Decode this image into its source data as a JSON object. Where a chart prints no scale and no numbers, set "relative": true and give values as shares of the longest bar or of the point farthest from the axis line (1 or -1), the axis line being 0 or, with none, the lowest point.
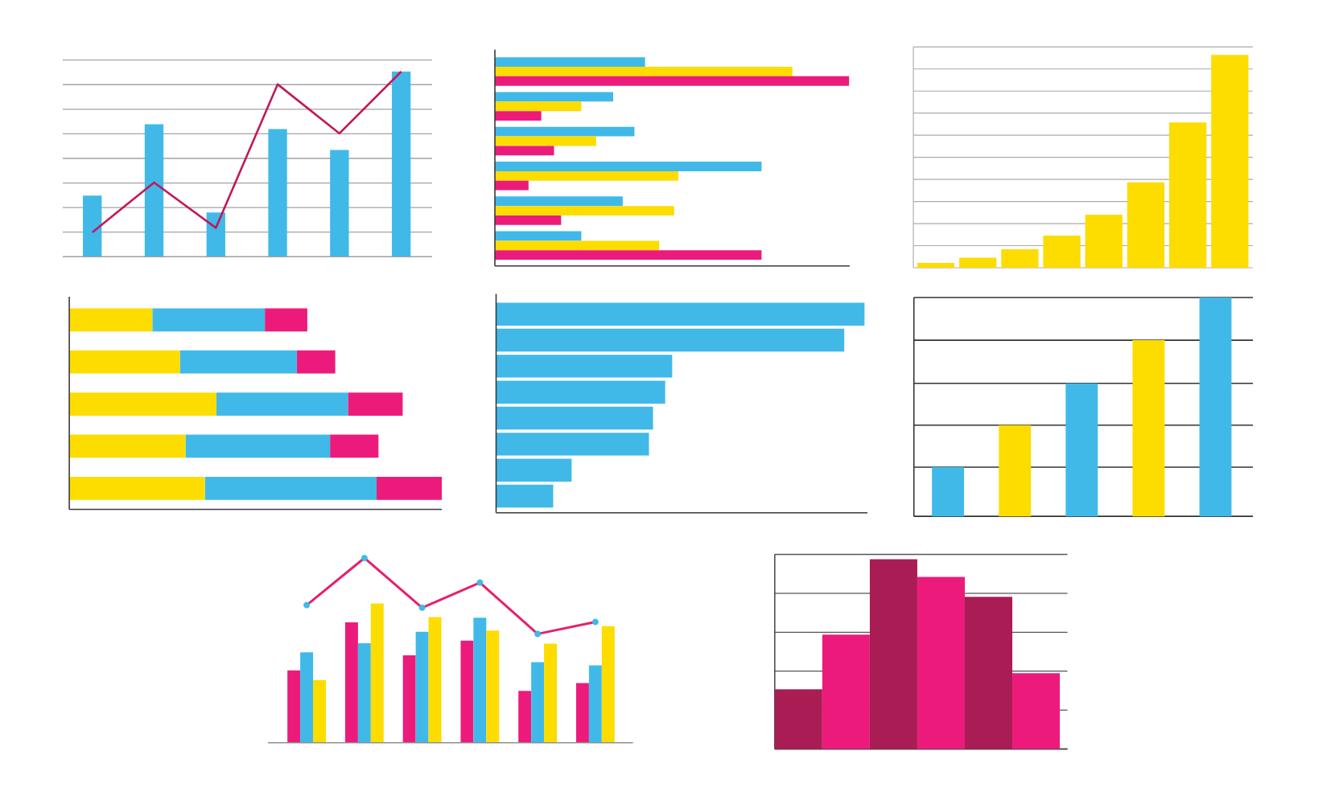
{
  "chart_data": [
    {
      "type": "bar",
      "relative": true,
      "grid": "y",
      "categories": [
        null,
        null,
        null,
        null,
        null,
        null
      ],
      "color": "#40b9e9",
      "values": [
        0.33,
        0.716,
        0.239,
        0.689,
        0.577,
        1
      ]
    },
    {
      "type": "line",
      "relative": true,
      "categories": [
        null,
        null,
        null,
        null,
        null,
        null
      ],
      "color": "#c2185b",
      "values": [
        0.132,
        0.401,
        0.156,
        0.931,
        0.666,
        1
      ]
    },
    {
      "type": "bar",
      "orientation": "horizontal",
      "relative": true,
      "categories": [
        null,
        null,
        null,
        null,
        null,
        null
      ],
      "series": [
        {
          "color": "#40b9e9",
          "values": [
            0.424,
            0.334,
            0.394,
            0.753,
            0.361,
            0.244
          ]
        },
        {
          "color": "#fddc00",
          "values": [
            0.84,
            0.244,
            0.286,
            0.518,
            0.506,
            0.464
          ]
        },
        {
          "color": "#ec1b7b",
          "values": [
            1,
            0.131,
            0.167,
            0.095,
            0.187,
            0.753
          ]
        }
      ]
    },
    {
      "type": "bar",
      "relative": true,
      "grid": "y",
      "categories": [
        null,
        null,
        null,
        null,
        null,
        null,
        null,
        null
      ],
      "color": "#fddc00",
      "values": [
        0.023,
        0.047,
        0.087,
        0.151,
        0.249,
        0.401,
        0.683,
        1
      ]
    },
    {
      "type": "bar",
      "orientation": "horizontal",
      "stacked": true,
      "relative": true,
      "categories": [
        null,
        null,
        null,
        null,
        null
      ],
      "series": [
        {
          "color": "#fddc00",
          "values": [
            0.223,
            0.297,
            0.395,
            0.312,
            0.364
          ]
        },
        {
          "color": "#40b9e9",
          "values": [
            0.302,
            0.314,
            0.353,
            0.388,
            0.461
          ]
        },
        {
          "color": "#ec1b7b",
          "values": [
            0.114,
            0.103,
            0.147,
            0.13,
            0.175
          ]
        }
      ]
    },
    {
      "type": "bar",
      "orientation": "horizontal",
      "relative": true,
      "categories": [
        null,
        null,
        null,
        null,
        null,
        null,
        null,
        null
      ],
      "color": "#40b9e9",
      "values": [
        1,
        0.945,
        0.478,
        0.459,
        0.426,
        0.415,
        0.205,
        0.155
      ]
    },
    {
      "type": "bar",
      "relative": true,
      "grid": "y",
      "categories": [
        null,
        null,
        null,
        null,
        null
      ],
      "colors": [
        "#40b9e9",
        "#fddc00",
        "#40b9e9",
        "#fddc00",
        "#40b9e9"
      ],
      "values": [
        0.225,
        0.417,
        0.608,
        0.805,
        1
      ]
    },
    {
      "type": "bar",
      "relative": true,
      "categories": [
        null,
        null,
        null,
        null,
        null,
        null
      ],
      "series": [
        {
          "color": "#ec1b7b",
          "values": [
            0.519,
            0.865,
            0.628,
            0.733,
            0.372,
            0.429
          ]
        },
        {
          "color": "#40b9e9",
          "values": [
            0.65,
            0.714,
            0.797,
            0.898,
            0.579,
            0.556
          ]
        },
        {
          "color": "#fddc00",
          "values": [
            0.451,
            1,
            0.902,
            0.805,
            0.711,
            0.838
          ]
        }
      ]
    },
    {
      "type": "line",
      "relative": true,
      "categories": [
        null,
        null,
        null,
        null,
        null,
        null
      ],
      "color": "#e5206f",
      "marker": "circle",
      "colors": [
        "#40b9e9",
        "#40b9e9",
        "#40b9e9",
        "#40b9e9",
        "#40b9e9",
        "#40b9e9"
      ],
      "values": [
        0.745,
        1,
        0.731,
        0.867,
        0.589,
        0.654
      ]
    },
    {
      "type": "bar",
      "relative": true,
      "grid": "y",
      "categories": [
        null,
        null,
        null,
        null,
        null,
        null
      ],
      "colors": [
        "#a91d54",
        "#ec1b7b",
        "#a91d54",
        "#ec1b7b",
        "#a91d54",
        "#ec1b7b"
      ],
      "values": [
        0.314,
        0.603,
        1,
        0.906,
        0.802,
        0.399
      ]
    }
  ]
}
